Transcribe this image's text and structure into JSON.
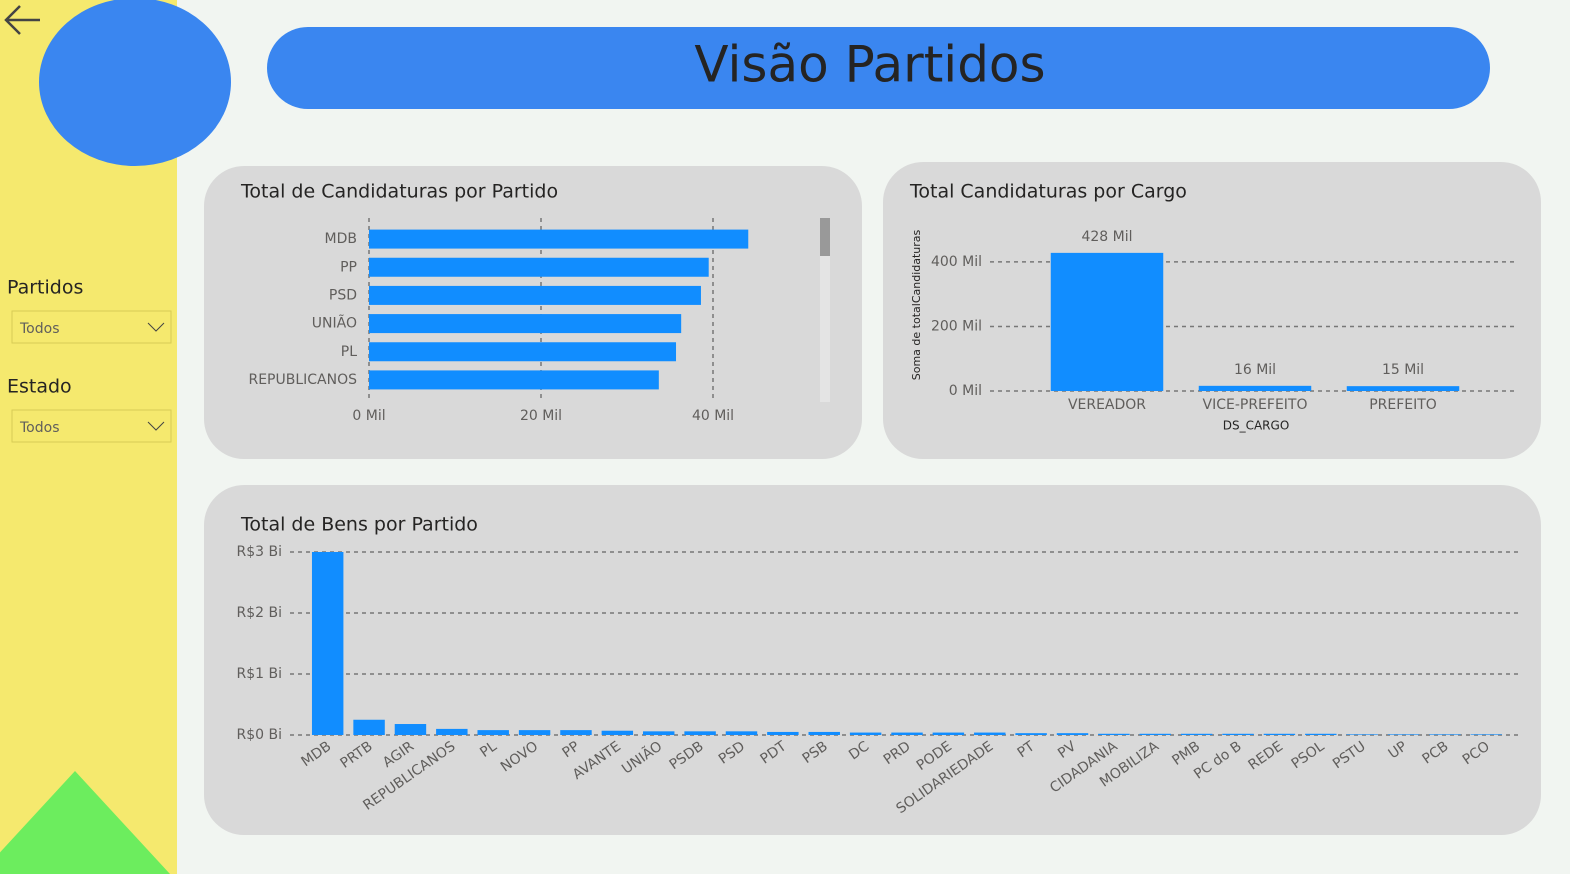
{
  "title": "Visão Partidos",
  "filters": [
    {
      "label": "Partidos",
      "value": "Todos"
    },
    {
      "label": "Estado",
      "value": "Todos"
    }
  ],
  "chart_data": [
    {
      "type": "bar",
      "orientation": "horizontal",
      "title": "Total de Candidaturas por Partido",
      "categories": [
        "MDB",
        "PP",
        "PSD",
        "UNIÃO",
        "PL",
        "REPUBLICANOS"
      ],
      "values": [
        44100,
        39500,
        38600,
        36300,
        35700,
        33700
      ],
      "color": "#118dff",
      "xlim": [
        0,
        50000
      ],
      "xticks": [
        {
          "value": 0,
          "label": "0 Mil"
        },
        {
          "value": 20000,
          "label": "20 Mil"
        },
        {
          "value": 40000,
          "label": "40 Mil"
        }
      ],
      "grid": true
    },
    {
      "type": "bar",
      "title": "Total Candidaturas por Cargo",
      "x_label": "DS_CARGO",
      "y_label": "Soma de totalCandidaturas",
      "categories": [
        "VEREADOR",
        "VICE-PREFEITO",
        "PREFEITO"
      ],
      "values": [
        428000,
        16000,
        15000
      ],
      "value_labels": [
        "428 Mil",
        "16 Mil",
        "15 Mil"
      ],
      "color": "#118dff",
      "ylim": [
        0,
        440000
      ],
      "yticks": [
        {
          "value": 0,
          "label": "0 Mil"
        },
        {
          "value": 200000,
          "label": "200 Mil"
        },
        {
          "value": 400000,
          "label": "400 Mil"
        }
      ],
      "grid": true
    },
    {
      "type": "bar",
      "title": "Total de Bens por Partido",
      "categories": [
        "MDB",
        "PRTB",
        "AGIR",
        "REPUBLICANOS",
        "PL",
        "NOVO",
        "PP",
        "AVANTE",
        "UNIÃO",
        "PSDB",
        "PSD",
        "PDT",
        "PSB",
        "DC",
        "PRD",
        "PODE",
        "SOLIDARIEDADE",
        "PT",
        "PV",
        "CIDADANIA",
        "MOBILIZA",
        "PMB",
        "PC do B",
        "REDE",
        "PSOL",
        "PSTU",
        "UP",
        "PCB",
        "PCO"
      ],
      "values": [
        3000000000,
        250000000,
        180000000,
        100000000,
        80000000,
        80000000,
        80000000,
        70000000,
        60000000,
        60000000,
        60000000,
        50000000,
        50000000,
        40000000,
        40000000,
        40000000,
        40000000,
        30000000,
        30000000,
        20000000,
        20000000,
        20000000,
        20000000,
        20000000,
        20000000,
        10000000,
        10000000,
        10000000,
        10000000
      ],
      "color": "#118dff",
      "ylim": [
        0,
        3000000000
      ],
      "yticks": [
        {
          "value": 0,
          "label": "R$0 Bi"
        },
        {
          "value": 1000000000,
          "label": "R$1 Bi"
        },
        {
          "value": 2000000000,
          "label": "R$2 Bi"
        },
        {
          "value": 3000000000,
          "label": "R$3 Bi"
        }
      ],
      "grid": true
    }
  ]
}
